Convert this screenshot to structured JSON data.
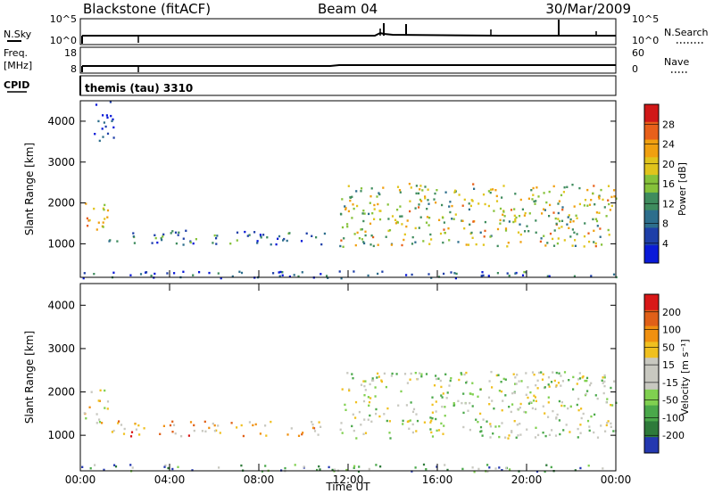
{
  "header": {
    "station": "Blackstone (fitACF)",
    "beam": "Beam 04",
    "date": "30/Mar/2009"
  },
  "top_panels": {
    "nsky_label": "N.Sky",
    "nsky_ticks": [
      "10^5",
      "10^0"
    ],
    "nsearch_label": "N.Search",
    "nsearch_ticks": [
      "10^5",
      "10^0"
    ],
    "freq_label": "Freq.",
    "freq_unit": "[MHz]",
    "freq_ticks": [
      "18",
      "8"
    ],
    "nave_label": "Nave",
    "nave_ticks": [
      "60",
      "0"
    ],
    "cpid_label": "CPID",
    "cpid_text": "themis (tau) 3310"
  },
  "chart_data": [
    {
      "type": "heatmap",
      "name": "power",
      "ylabel": "Slant Range [km]",
      "yticks": [
        "4000",
        "3000",
        "2000",
        "1000"
      ],
      "ylim": [
        180,
        4500
      ],
      "xlim": [
        0,
        24
      ],
      "colorbar_label": "Power [dB]",
      "colorbar_ticks": [
        "28",
        "24",
        "20",
        "16",
        "12",
        "8",
        "4"
      ],
      "colors": [
        "#0a1ad8",
        "#1e3fa8",
        "#2d6e8c",
        "#3f8c5e",
        "#86c23a",
        "#e0c41c",
        "#f0a010",
        "#e8601a",
        "#d01818"
      ],
      "regions": [
        {
          "t": [
            0.0,
            1.2
          ],
          "r": [
            1300,
            2100
          ],
          "level": 0.65
        },
        {
          "t": [
            0.6,
            1.5
          ],
          "r": [
            3400,
            4500
          ],
          "level": 0.15
        },
        {
          "t": [
            1.2,
            11.0
          ],
          "r": [
            1000,
            1350
          ],
          "level": 0.25
        },
        {
          "t": [
            11.6,
            24.0
          ],
          "r": [
            950,
            2500
          ],
          "level": 0.55
        },
        {
          "t": [
            0.0,
            24.0
          ],
          "r": [
            180,
            350
          ],
          "level": 0.2
        }
      ]
    },
    {
      "type": "heatmap",
      "name": "velocity",
      "xlabel": "Time UT",
      "ylabel": "Slant Range [km]",
      "yticks": [
        "4000",
        "3000",
        "2000",
        "1000"
      ],
      "xticks": [
        "00:00",
        "04:00",
        "08:00",
        "12:00",
        "16:00",
        "20:00",
        "00:00"
      ],
      "ylim": [
        180,
        4500
      ],
      "xlim": [
        0,
        24
      ],
      "colorbar_label": "Velocity [m s⁻¹]",
      "colorbar_ticks": [
        "200",
        "100",
        "50",
        "15",
        "-15",
        "-50",
        "-100",
        "-200"
      ],
      "colors": [
        "#2438b0",
        "#2e7a3a",
        "#4aa84a",
        "#80d050",
        "#c8c8c0",
        "#c8c8c0",
        "#f0c020",
        "#f09010",
        "#e06018",
        "#d81818"
      ],
      "regions": [
        {
          "t": [
            0.0,
            1.2
          ],
          "r": [
            1300,
            2100
          ],
          "level": 0.55
        },
        {
          "t": [
            1.2,
            11.0
          ],
          "r": [
            1000,
            1350
          ],
          "level": 0.7
        },
        {
          "t": [
            11.6,
            24.0
          ],
          "r": [
            950,
            2500
          ],
          "level": 0.45
        },
        {
          "t": [
            0.0,
            24.0
          ],
          "r": [
            180,
            350
          ],
          "level": 0.25
        }
      ]
    }
  ]
}
